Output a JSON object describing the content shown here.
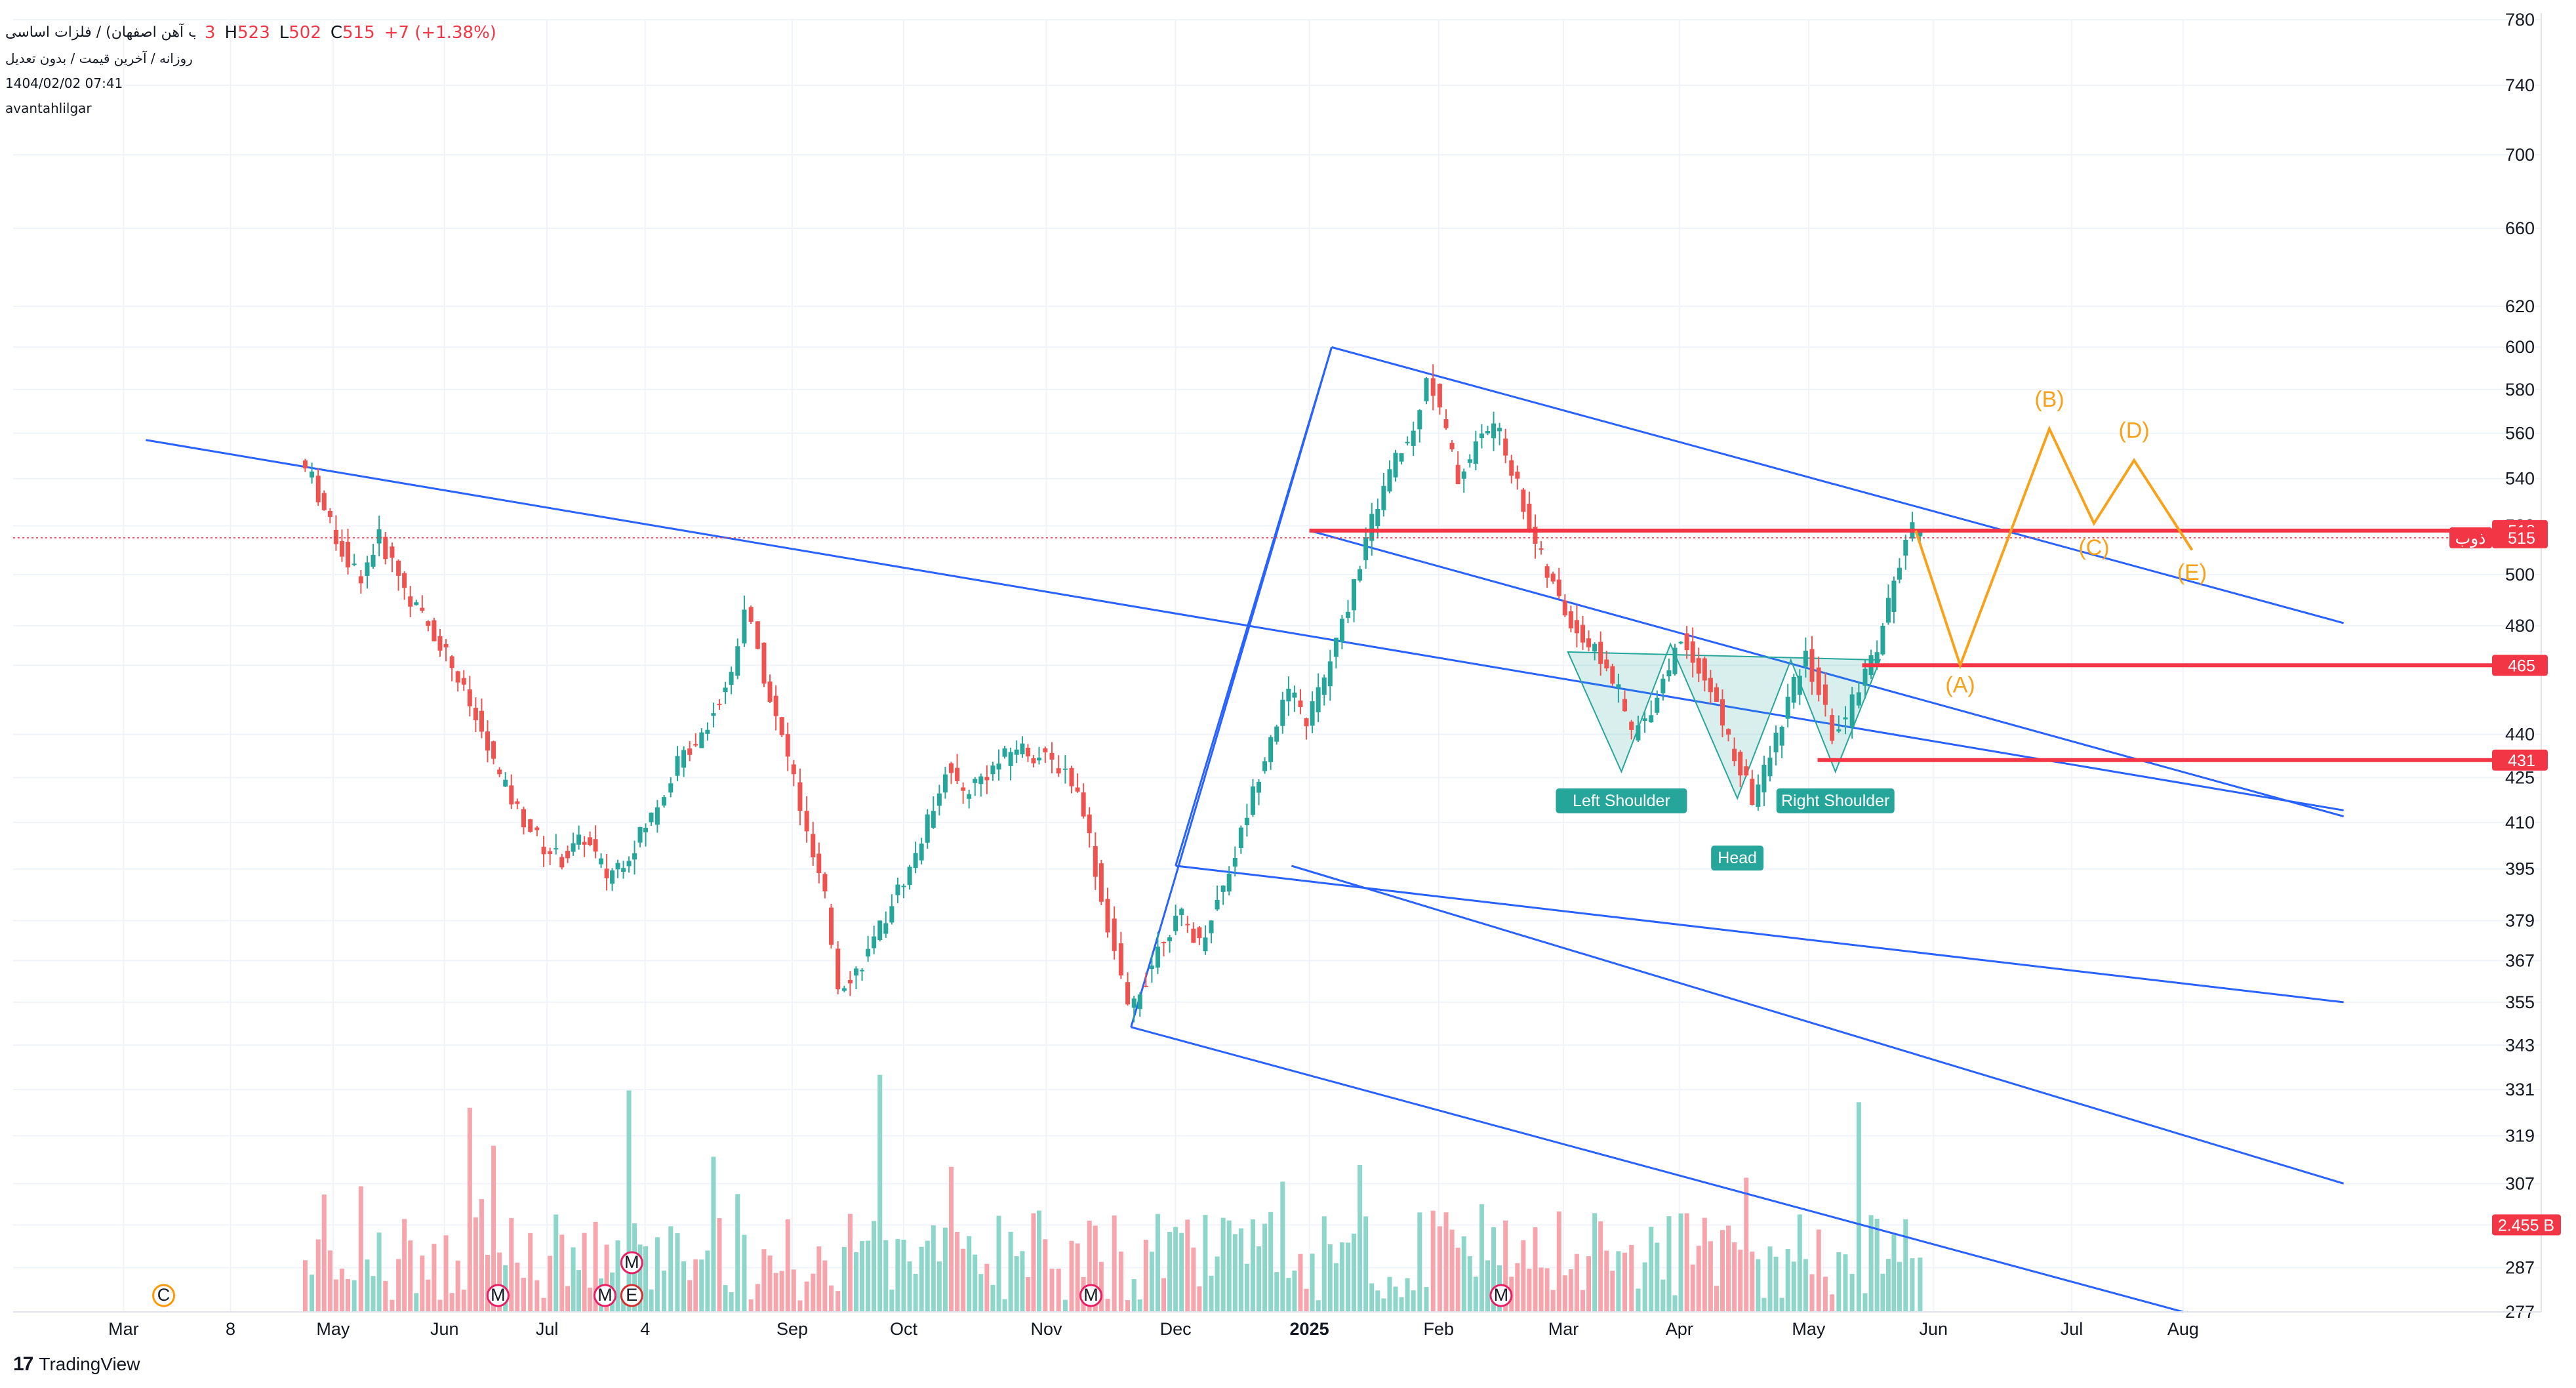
{
  "legend": {
    "symbol": "ذوب (ذوب آهن اصفهان) / فلزات اساسی",
    "o_value": "3",
    "h_label": "H",
    "h_value": "523",
    "l_label": "L",
    "l_value": "502",
    "c_label": "C",
    "c_value": "515",
    "change": "+7 (+1.38%)",
    "line2": "روزانه / آخرین قیمت / بدون تعدیل",
    "line3": "1404/02/02 07:41",
    "line4": "avantahlilgar"
  },
  "logo": {
    "text": "TradingView"
  },
  "colors": {
    "up": "#26a69a",
    "down": "#ef5350",
    "vol_up": "#8dd6c9",
    "vol_down": "#f7a5ac",
    "channel": "#2962ff",
    "level": "#f23645",
    "wave": "#f7a21b",
    "pattern": "#26a69a"
  },
  "chart_data": {
    "type": "candlestick",
    "y_scale": "log",
    "ylim": [
      277,
      780
    ],
    "price_ticks": [
      780,
      740,
      700,
      660,
      620,
      600,
      580,
      560,
      540,
      520,
      500,
      480,
      465,
      440,
      425,
      410,
      395,
      379,
      367,
      355,
      343,
      331,
      319,
      307,
      297,
      287,
      277
    ],
    "x_tick_labels": [
      "Mar",
      "8",
      "May",
      "Jun",
      "Jul",
      "4",
      "Sep",
      "Oct",
      "Nov",
      "Dec",
      "2025",
      "Feb",
      "Mar",
      "Apr",
      "May",
      "Jun",
      "Jul",
      "Aug"
    ],
    "last_price": 515,
    "level_tags": [
      {
        "value": 518,
        "label": "518"
      },
      {
        "value": 515,
        "label": "515",
        "prefix": "ذوب"
      },
      {
        "value": 465,
        "label": "465"
      },
      {
        "value": 431,
        "label": "431"
      }
    ],
    "volume_tag": "2.455 B",
    "horizontal_levels": [
      518,
      465,
      431
    ],
    "pattern_labels": [
      "Left Shoulder",
      "Head",
      "Right Shoulder"
    ],
    "wave_labels": [
      "(A)",
      "(B)",
      "(C)",
      "(D)",
      "(E)"
    ],
    "event_markers": [
      "C",
      "M",
      "M",
      "M",
      "E",
      "M",
      "M"
    ],
    "close_path": [
      {
        "d": "2024-05-07",
        "v": 548
      },
      {
        "d": "2024-05-10",
        "v": 540
      },
      {
        "d": "2024-05-14",
        "v": 520
      },
      {
        "d": "2024-05-18",
        "v": 505
      },
      {
        "d": "2024-05-21",
        "v": 500
      },
      {
        "d": "2024-05-25",
        "v": 515
      },
      {
        "d": "2024-05-28",
        "v": 505
      },
      {
        "d": "2024-06-01",
        "v": 490
      },
      {
        "d": "2024-06-05",
        "v": 480
      },
      {
        "d": "2024-06-09",
        "v": 470
      },
      {
        "d": "2024-06-13",
        "v": 455
      },
      {
        "d": "2024-06-17",
        "v": 440
      },
      {
        "d": "2024-06-21",
        "v": 425
      },
      {
        "d": "2024-06-25",
        "v": 414
      },
      {
        "d": "2024-07-01",
        "v": 402
      },
      {
        "d": "2024-07-05",
        "v": 398
      },
      {
        "d": "2024-07-10",
        "v": 405
      },
      {
        "d": "2024-07-15",
        "v": 393
      },
      {
        "d": "2024-07-20",
        "v": 400
      },
      {
        "d": "2024-07-25",
        "v": 412
      },
      {
        "d": "2024-07-31",
        "v": 430
      },
      {
        "d": "2024-08-04",
        "v": 438
      },
      {
        "d": "2024-08-08",
        "v": 448
      },
      {
        "d": "2024-08-12",
        "v": 462
      },
      {
        "d": "2024-08-15",
        "v": 488
      },
      {
        "d": "2024-08-18",
        "v": 470
      },
      {
        "d": "2024-08-22",
        "v": 445
      },
      {
        "d": "2024-08-26",
        "v": 425
      },
      {
        "d": "2024-08-29",
        "v": 405
      },
      {
        "d": "2024-09-02",
        "v": 385
      },
      {
        "d": "2024-09-05",
        "v": 360
      },
      {
        "d": "2024-09-09",
        "v": 364
      },
      {
        "d": "2024-09-13",
        "v": 372
      },
      {
        "d": "2024-09-17",
        "v": 385
      },
      {
        "d": "2024-09-21",
        "v": 395
      },
      {
        "d": "2024-09-25",
        "v": 410
      },
      {
        "d": "2024-09-29",
        "v": 428
      },
      {
        "d": "2024-10-03",
        "v": 420
      },
      {
        "d": "2024-10-07",
        "v": 425
      },
      {
        "d": "2024-10-11",
        "v": 430
      },
      {
        "d": "2024-10-15",
        "v": 436
      },
      {
        "d": "2024-10-20",
        "v": 432
      },
      {
        "d": "2024-10-26",
        "v": 428
      },
      {
        "d": "2024-10-30",
        "v": 415
      },
      {
        "d": "2024-11-03",
        "v": 385
      },
      {
        "d": "2024-11-06",
        "v": 370
      },
      {
        "d": "2024-11-09",
        "v": 352
      },
      {
        "d": "2024-11-13",
        "v": 362
      },
      {
        "d": "2024-11-17",
        "v": 375
      },
      {
        "d": "2024-11-21",
        "v": 380
      },
      {
        "d": "2024-11-25",
        "v": 372
      },
      {
        "d": "2024-11-29",
        "v": 385
      },
      {
        "d": "2024-12-03",
        "v": 400
      },
      {
        "d": "2024-12-07",
        "v": 420
      },
      {
        "d": "2024-12-11",
        "v": 440
      },
      {
        "d": "2024-12-15",
        "v": 455
      },
      {
        "d": "2024-12-19",
        "v": 445
      },
      {
        "d": "2024-12-23",
        "v": 460
      },
      {
        "d": "2024-12-27",
        "v": 480
      },
      {
        "d": "2024-12-31",
        "v": 505
      },
      {
        "d": "2025-01-04",
        "v": 530
      },
      {
        "d": "2025-01-08",
        "v": 548
      },
      {
        "d": "2025-01-12",
        "v": 560
      },
      {
        "d": "2025-01-15",
        "v": 588
      },
      {
        "d": "2025-01-18",
        "v": 570
      },
      {
        "d": "2025-01-22",
        "v": 540
      },
      {
        "d": "2025-01-26",
        "v": 555
      },
      {
        "d": "2025-01-30",
        "v": 565
      },
      {
        "d": "2025-02-03",
        "v": 545
      },
      {
        "d": "2025-02-07",
        "v": 520
      },
      {
        "d": "2025-02-11",
        "v": 500
      },
      {
        "d": "2025-02-15",
        "v": 485
      },
      {
        "d": "2025-02-19",
        "v": 475
      },
      {
        "d": "2025-02-23",
        "v": 468
      },
      {
        "d": "2025-02-27",
        "v": 455
      },
      {
        "d": "2025-03-02",
        "v": 440
      },
      {
        "d": "2025-03-05",
        "v": 445
      },
      {
        "d": "2025-03-09",
        "v": 460
      },
      {
        "d": "2025-03-13",
        "v": 475
      },
      {
        "d": "2025-03-17",
        "v": 465
      },
      {
        "d": "2025-03-21",
        "v": 450
      },
      {
        "d": "2025-03-25",
        "v": 432
      },
      {
        "d": "2025-03-29",
        "v": 418
      },
      {
        "d": "2025-04-02",
        "v": 432
      },
      {
        "d": "2025-04-06",
        "v": 452
      },
      {
        "d": "2025-04-10",
        "v": 468
      },
      {
        "d": "2025-04-13",
        "v": 455
      },
      {
        "d": "2025-04-16",
        "v": 440
      },
      {
        "d": "2025-04-19",
        "v": 445
      },
      {
        "d": "2025-04-22",
        "v": 458
      },
      {
        "d": "2025-04-26",
        "v": 472
      },
      {
        "d": "2025-05-01",
        "v": 505
      },
      {
        "d": "2025-05-04",
        "v": 518
      },
      {
        "d": "2025-05-06",
        "v": 515
      }
    ],
    "channels": [
      {
        "upper": [
          {
            "d": "2024-05-06",
            "v": 557
          },
          {
            "d": "2025-07-25",
            "v": 297
          }
        ],
        "lower": [
          {
            "d": "2024-05-06",
            "v": 557
          },
          {
            "d": "2025-07-25",
            "v": 297
          }
        ]
      }
    ],
    "volume_range": [
      0,
      6
    ]
  }
}
